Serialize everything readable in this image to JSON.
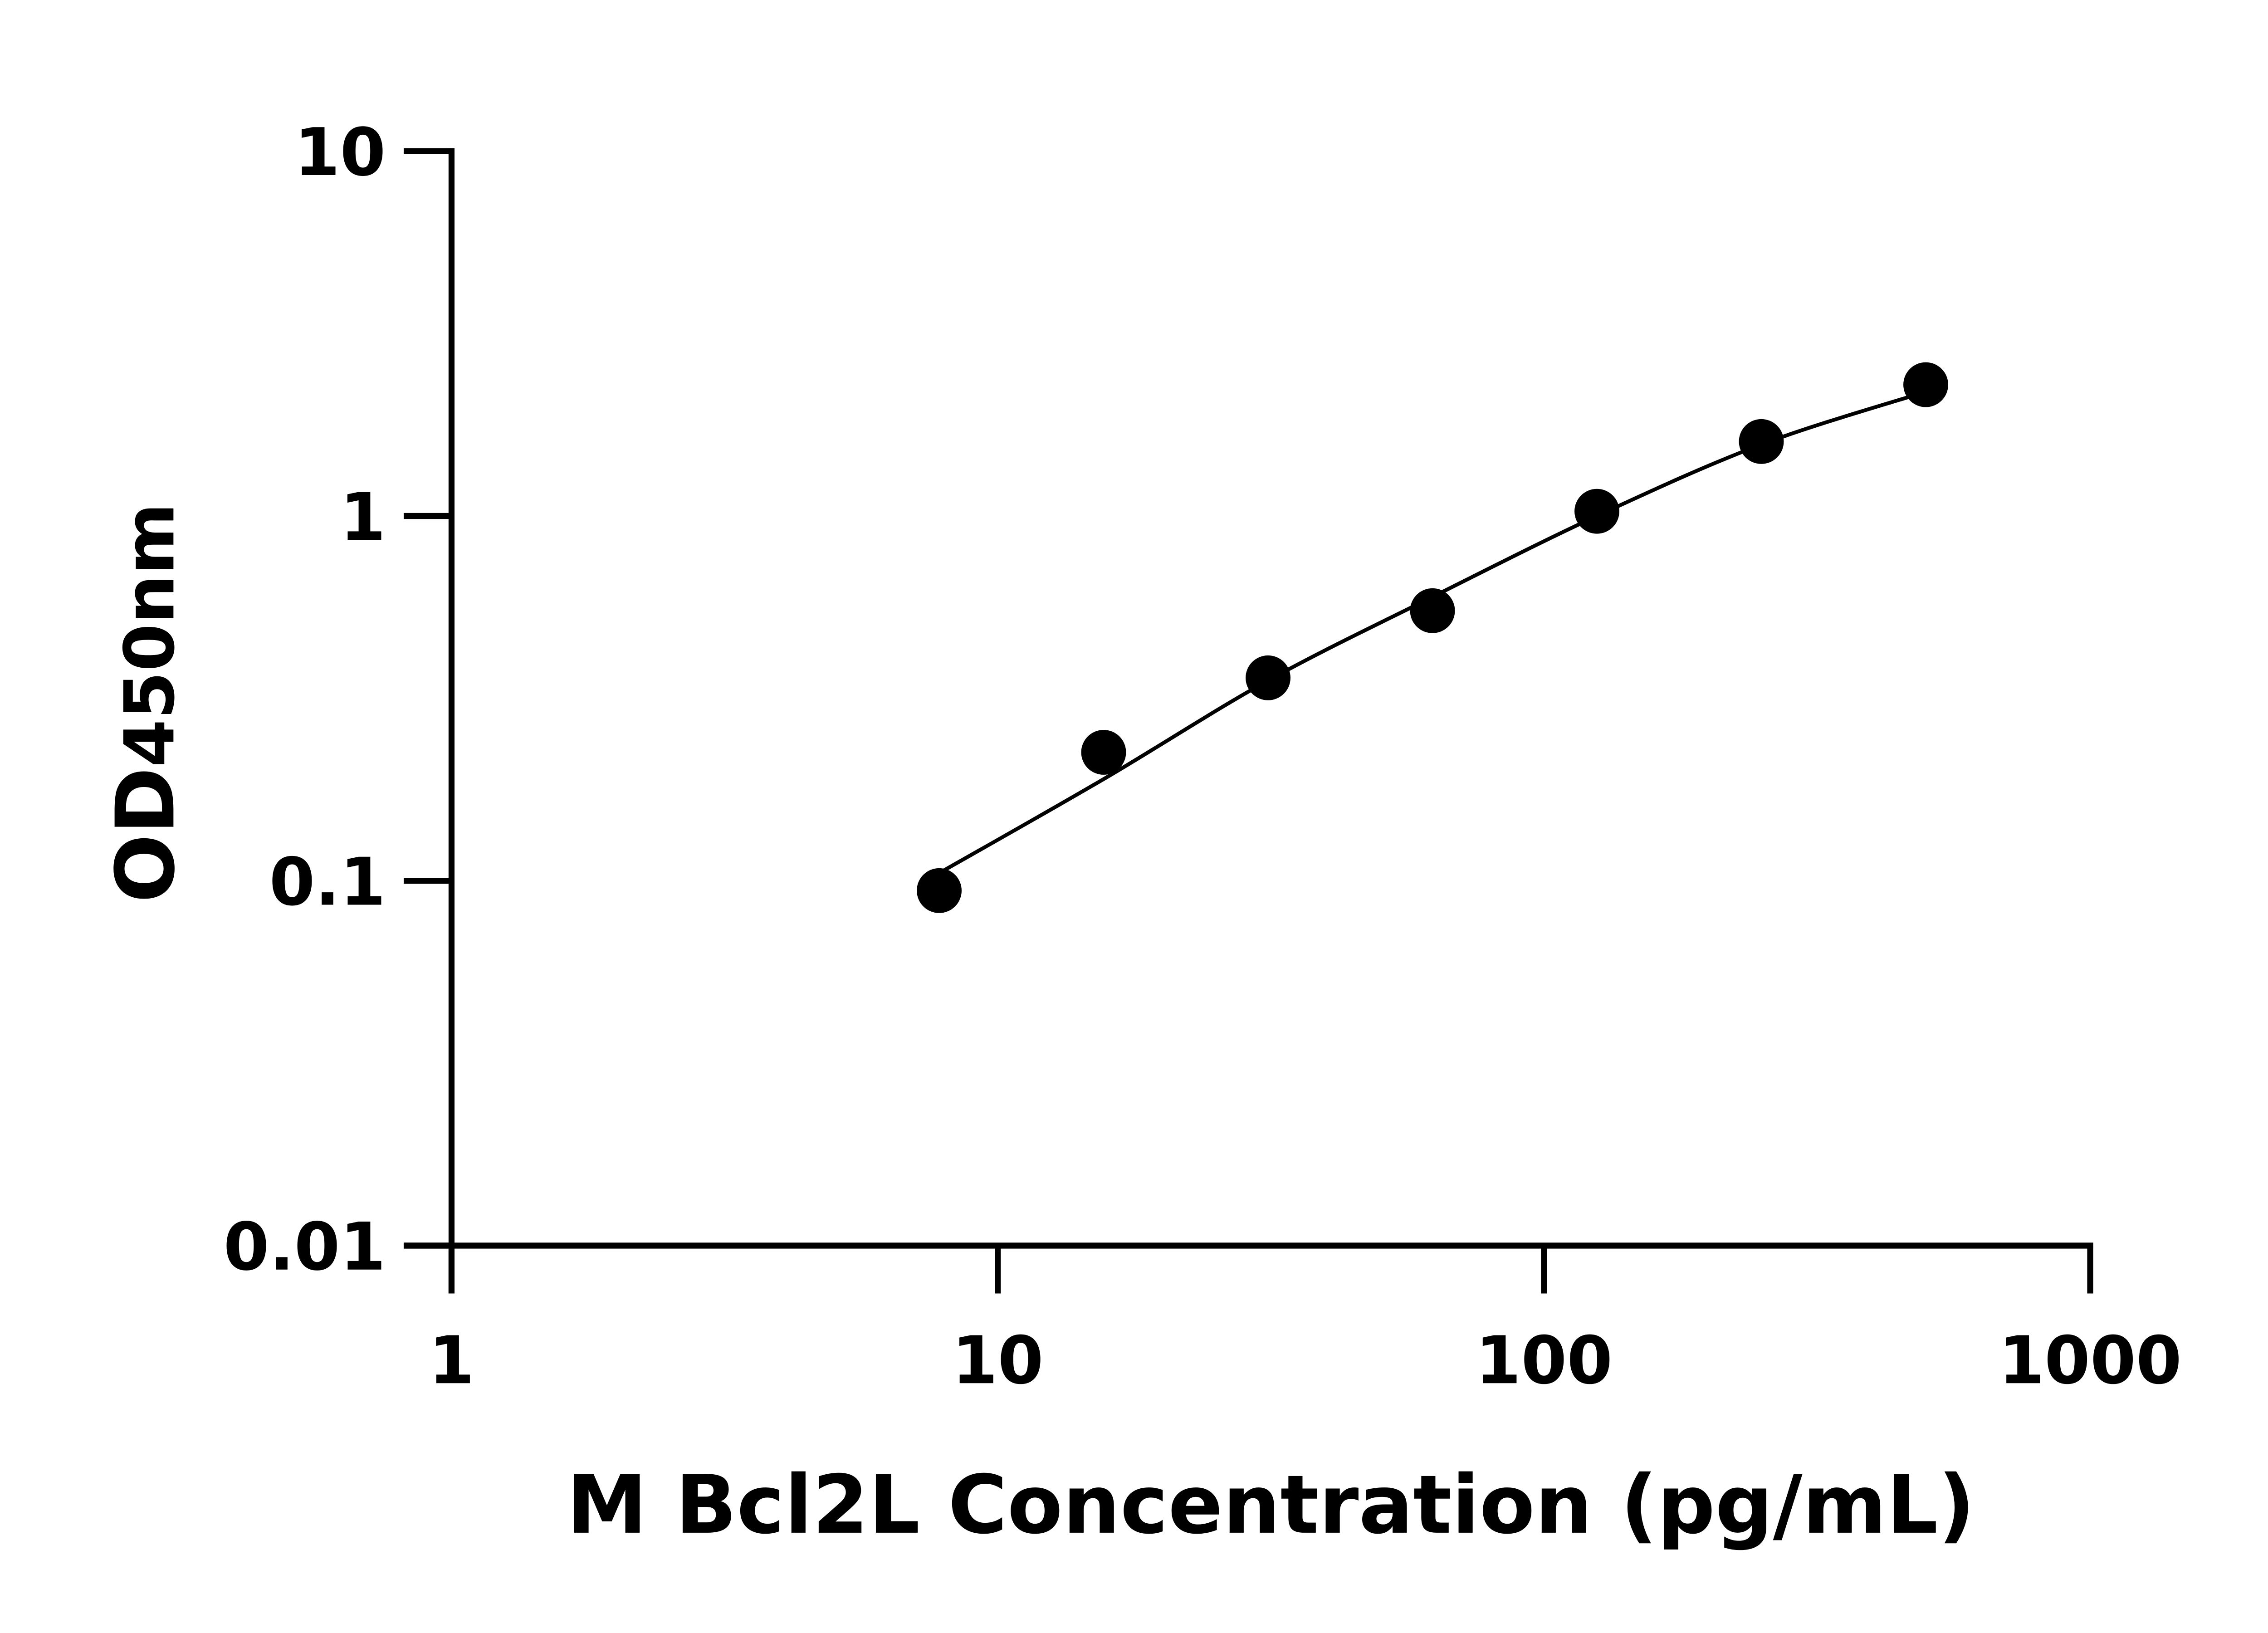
{
  "chart_data": {
    "type": "scatter",
    "title": "",
    "xlabel": "M Bcl2L Concentration (pg/mL)",
    "ylabel_main": "OD",
    "ylabel_sub": "450nm",
    "x_scale": "log",
    "y_scale": "log",
    "xlim": [
      1,
      1000
    ],
    "ylim": [
      0.01,
      10
    ],
    "x_ticks": [
      1,
      10,
      100,
      1000
    ],
    "x_tick_labels": [
      "1",
      "10",
      "100",
      "1000"
    ],
    "y_ticks": [
      0.01,
      0.1,
      1,
      10
    ],
    "y_tick_labels": [
      "0.01",
      "0.1",
      "1",
      "10"
    ],
    "grid": false,
    "legend": "none",
    "marker_color": "#000000",
    "series": [
      {
        "type": "scatter",
        "x": [
          7.8125,
          15.625,
          31.25,
          62.5,
          125,
          250,
          500
        ],
        "y": [
          0.094,
          0.225,
          0.36,
          0.55,
          1.03,
          1.6,
          2.29
        ]
      },
      {
        "type": "line",
        "x": [
          7.8125,
          15.625,
          31.25,
          62.5,
          125,
          250,
          500
        ],
        "y": [
          0.105,
          0.19,
          0.354,
          0.6,
          1.0,
          1.57,
          2.19
        ]
      }
    ]
  }
}
